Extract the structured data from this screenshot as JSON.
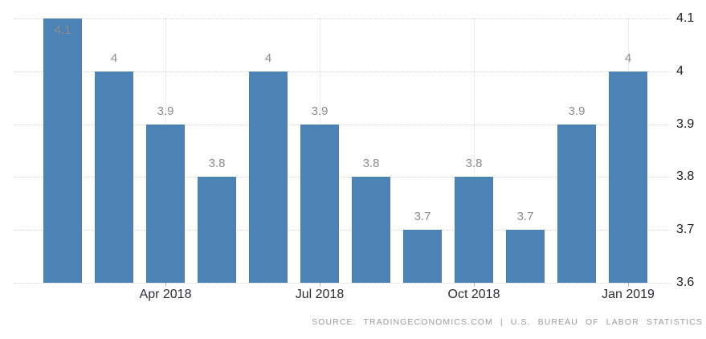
{
  "chart_data": {
    "type": "bar",
    "title": "",
    "xlabel": "",
    "ylabel": "",
    "values": [
      4.1,
      4,
      3.9,
      3.8,
      4,
      3.9,
      3.8,
      3.7,
      3.8,
      3.7,
      3.9,
      4
    ],
    "bar_value_labels": [
      "4.1",
      "4",
      "3.9",
      "3.8",
      "4",
      "3.9",
      "3.8",
      "3.7",
      "3.8",
      "3.7",
      "3.9",
      "4"
    ],
    "x_ticks": [
      {
        "label": "Apr 2018",
        "bar_index": 2
      },
      {
        "label": "Jul 2018",
        "bar_index": 5
      },
      {
        "label": "Oct 2018",
        "bar_index": 8
      },
      {
        "label": "Jan 2019",
        "bar_index": 11
      }
    ],
    "y_ticks": [
      {
        "label": "4.1",
        "value": 4.1
      },
      {
        "label": "4",
        "value": 4.0
      },
      {
        "label": "3.9",
        "value": 3.9
      },
      {
        "label": "3.8",
        "value": 3.8
      },
      {
        "label": "3.7",
        "value": 3.7
      },
      {
        "label": "3.6",
        "value": 3.6
      }
    ],
    "ylim": [
      3.6,
      4.1
    ],
    "y_axis_side": "right",
    "legend": "none",
    "grid": {
      "horizontal": true,
      "vertical": "at labeled x ticks only",
      "style": "dotted"
    },
    "colors": {
      "bar": "#4c82b4",
      "grid": "#d4d4d4",
      "value_label": "#8c8c8c",
      "axis_label": "#2d2d33",
      "source_text": "#9b9b9b",
      "background": "#ffffff"
    }
  },
  "footer": {
    "source_label": "SOURCE: TRADINGECONOMICS.COM | U.S. BUREAU OF LABOR STATISTICS"
  }
}
